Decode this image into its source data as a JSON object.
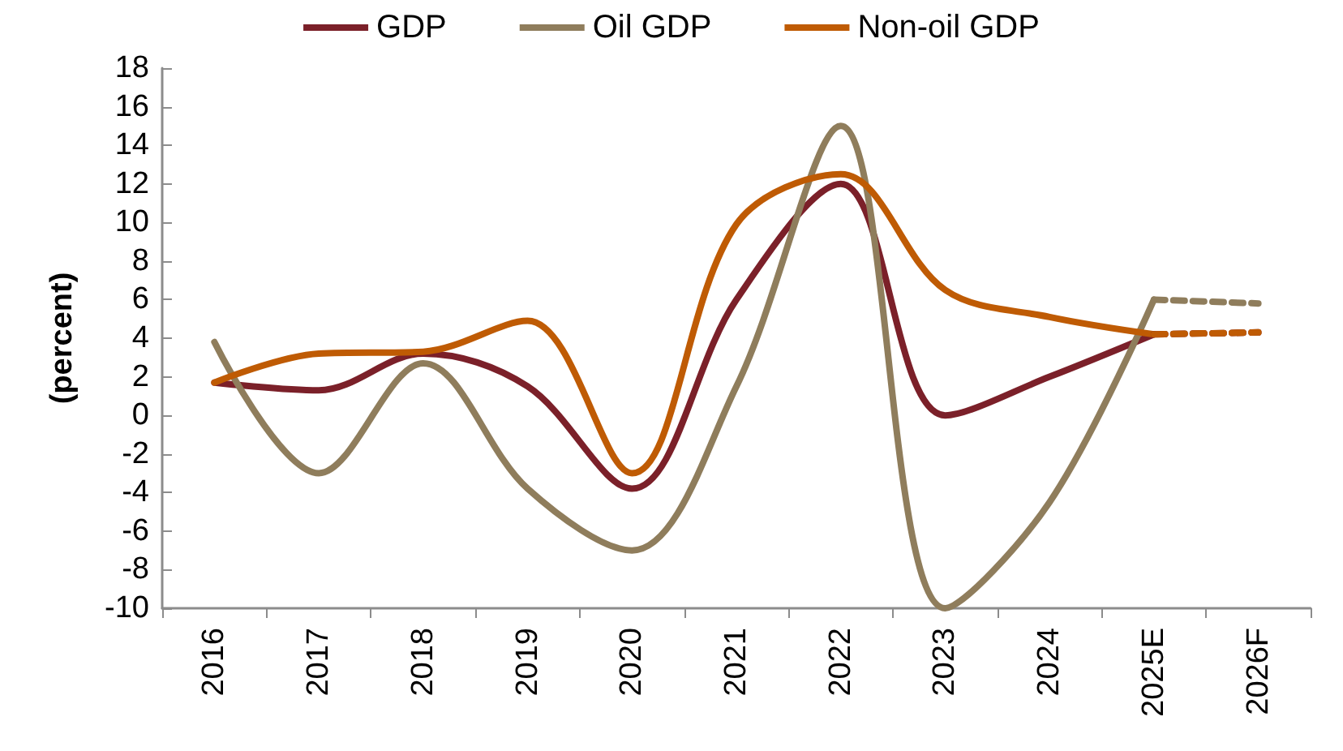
{
  "chart_data": {
    "type": "line",
    "ylabel": "(percent)",
    "categories": [
      "2016",
      "2017",
      "2018",
      "2019",
      "2020",
      "2021",
      "2022",
      "2023",
      "2024",
      "2025E",
      "2026F"
    ],
    "series": [
      {
        "name": "GDP",
        "color": "#7b2029",
        "values": [
          1.7,
          1.3,
          3.2,
          1.5,
          -3.8,
          6.0,
          12.0,
          0.0,
          2.0,
          4.2,
          null
        ]
      },
      {
        "name": "Oil GDP",
        "color": "#8f7d5c",
        "values": [
          3.8,
          -3.0,
          2.7,
          -3.8,
          -7.0,
          1.5,
          15.0,
          -10.0,
          -4.5,
          6.0,
          null
        ]
      },
      {
        "name": "Non-oil GDP",
        "color": "#bf5b04",
        "values": [
          1.7,
          3.2,
          3.3,
          4.9,
          -3.0,
          9.9,
          12.5,
          6.5,
          5.1,
          4.2,
          null
        ]
      },
      {
        "color": "#7b2029",
        "line_style": "dashed",
        "values": [
          null,
          null,
          null,
          null,
          null,
          null,
          null,
          null,
          null,
          4.2,
          4.3
        ]
      },
      {
        "color": "#8f7d5c",
        "line_style": "dashed",
        "values": [
          null,
          null,
          null,
          null,
          null,
          null,
          null,
          null,
          null,
          6.0,
          5.8
        ]
      },
      {
        "color": "#bf5b04",
        "line_style": "dashed",
        "values": [
          null,
          null,
          null,
          null,
          null,
          null,
          null,
          null,
          null,
          4.2,
          4.3
        ]
      }
    ],
    "ylim": [
      -10,
      18
    ],
    "yticks": [
      -10,
      -8,
      -6,
      -4,
      -2,
      0,
      2,
      4,
      6,
      8,
      10,
      12,
      14,
      16,
      18
    ],
    "grid": false,
    "legend": "top",
    "marker": "none"
  }
}
